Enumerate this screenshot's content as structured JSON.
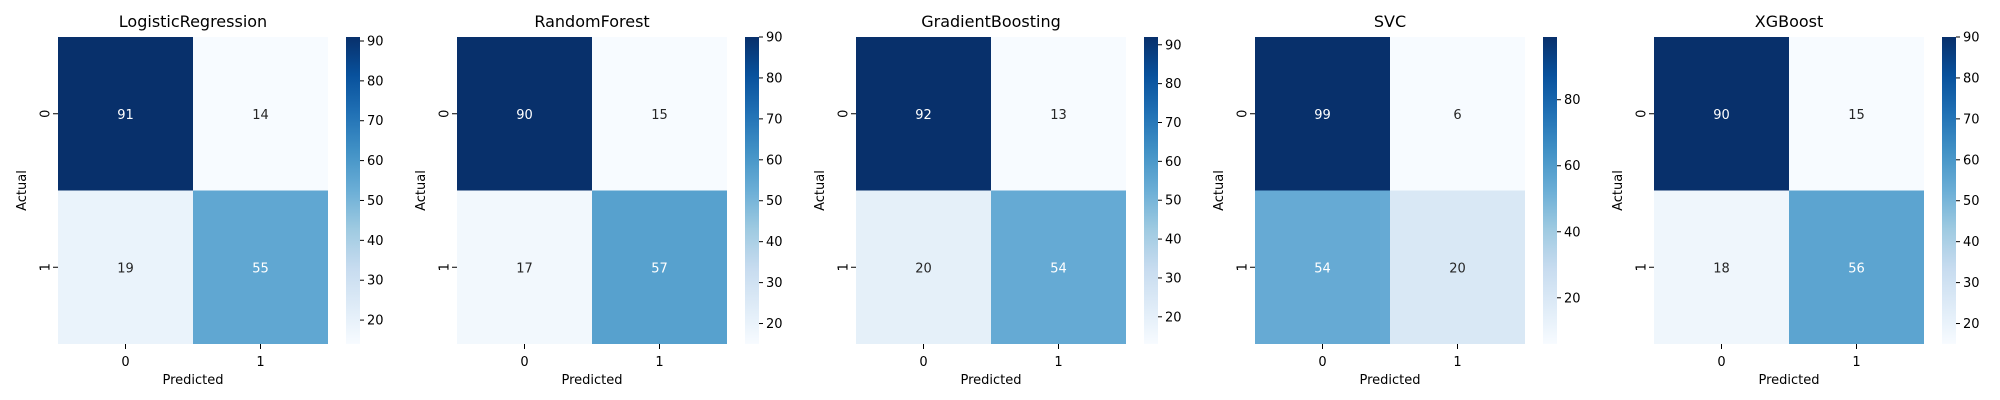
{
  "chart_data": [
    {
      "type": "heatmap",
      "title": "LogisticRegression",
      "xlabel": "Predicted",
      "ylabel": "Actual",
      "x_categories": [
        "0",
        "1"
      ],
      "y_categories": [
        "0",
        "1"
      ],
      "values": [
        [
          91,
          14
        ],
        [
          19,
          55
        ]
      ],
      "colormap": "Blues",
      "color_range": [
        14,
        91
      ],
      "colorbar_ticks": [
        20,
        30,
        40,
        50,
        60,
        70,
        80,
        90
      ]
    },
    {
      "type": "heatmap",
      "title": "RandomForest",
      "xlabel": "Predicted",
      "ylabel": "Actual",
      "x_categories": [
        "0",
        "1"
      ],
      "y_categories": [
        "0",
        "1"
      ],
      "values": [
        [
          90,
          15
        ],
        [
          17,
          57
        ]
      ],
      "colormap": "Blues",
      "color_range": [
        15,
        90
      ],
      "colorbar_ticks": [
        20,
        30,
        40,
        50,
        60,
        70,
        80,
        90
      ]
    },
    {
      "type": "heatmap",
      "title": "GradientBoosting",
      "xlabel": "Predicted",
      "ylabel": "Actual",
      "x_categories": [
        "0",
        "1"
      ],
      "y_categories": [
        "0",
        "1"
      ],
      "values": [
        [
          92,
          13
        ],
        [
          20,
          54
        ]
      ],
      "colormap": "Blues",
      "color_range": [
        13,
        92
      ],
      "colorbar_ticks": [
        20,
        30,
        40,
        50,
        60,
        70,
        80,
        90
      ]
    },
    {
      "type": "heatmap",
      "title": "SVC",
      "xlabel": "Predicted",
      "ylabel": "Actual",
      "x_categories": [
        "0",
        "1"
      ],
      "y_categories": [
        "0",
        "1"
      ],
      "values": [
        [
          99,
          6
        ],
        [
          54,
          20
        ]
      ],
      "colormap": "Blues",
      "color_range": [
        6,
        99
      ],
      "colorbar_ticks": [
        20,
        40,
        60,
        80
      ]
    },
    {
      "type": "heatmap",
      "title": "XGBoost",
      "xlabel": "Predicted",
      "ylabel": "Actual",
      "x_categories": [
        "0",
        "1"
      ],
      "y_categories": [
        "0",
        "1"
      ],
      "values": [
        [
          90,
          15
        ],
        [
          18,
          56
        ]
      ],
      "colormap": "Blues",
      "color_range": [
        15,
        90
      ],
      "colorbar_ticks": [
        20,
        30,
        40,
        50,
        60,
        70,
        80,
        90
      ]
    }
  ]
}
